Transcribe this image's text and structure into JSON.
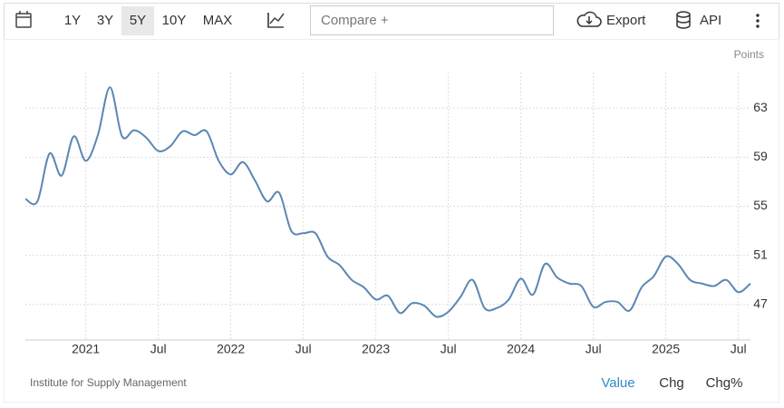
{
  "toolbar": {
    "ranges": [
      "1Y",
      "3Y",
      "5Y",
      "10Y",
      "MAX"
    ],
    "compare": "Compare +",
    "export": "Export",
    "api": "API"
  },
  "footer": {
    "tabs": [
      "Value",
      "Chg",
      "Chg%"
    ]
  },
  "chart_data": {
    "type": "line",
    "y_label": "Points",
    "source": "Institute for Supply Management",
    "x": [
      "2020-08",
      "2020-09",
      "2020-10",
      "2020-11",
      "2020-12",
      "2021-01",
      "2021-02",
      "2021-03",
      "2021-04",
      "2021-05",
      "2021-06",
      "2021-07",
      "2021-08",
      "2021-09",
      "2021-10",
      "2021-11",
      "2021-12",
      "2022-01",
      "2022-02",
      "2022-03",
      "2022-04",
      "2022-05",
      "2022-06",
      "2022-07",
      "2022-08",
      "2022-09",
      "2022-10",
      "2022-11",
      "2022-12",
      "2023-01",
      "2023-02",
      "2023-03",
      "2023-04",
      "2023-05",
      "2023-06",
      "2023-07",
      "2023-08",
      "2023-09",
      "2023-10",
      "2023-11",
      "2023-12",
      "2024-01",
      "2024-02",
      "2024-03",
      "2024-04",
      "2024-05",
      "2024-06",
      "2024-07",
      "2024-08",
      "2024-09",
      "2024-10",
      "2024-11",
      "2024-12",
      "2025-01",
      "2025-02",
      "2025-03",
      "2025-04",
      "2025-05",
      "2025-06",
      "2025-07",
      "2025-08"
    ],
    "series": [
      {
        "color": "#5b87b5",
        "values": [
          55.6,
          55.4,
          59.3,
          57.5,
          60.7,
          58.7,
          60.8,
          64.7,
          60.7,
          61.2,
          60.6,
          59.5,
          59.9,
          61.1,
          60.8,
          61.1,
          58.7,
          57.6,
          58.6,
          57.1,
          55.4,
          56.1,
          53.0,
          52.8,
          52.8,
          50.9,
          50.2,
          49.0,
          48.4,
          47.4,
          47.7,
          46.3,
          47.1,
          46.9,
          46.0,
          46.4,
          47.6,
          49.0,
          46.7,
          46.7,
          47.4,
          49.1,
          47.8,
          50.3,
          49.2,
          48.7,
          48.5,
          46.8,
          47.2,
          47.2,
          46.5,
          48.4,
          49.3,
          50.9,
          50.3,
          49.0,
          48.7,
          48.5,
          49.0,
          48.0,
          48.7
        ]
      }
    ],
    "xlim": [
      "2020-08",
      "2025-08"
    ],
    "xticks": [
      {
        "value": "2021-01",
        "label": "2021"
      },
      {
        "value": "2021-07",
        "label": "Jul"
      },
      {
        "value": "2022-01",
        "label": "2022"
      },
      {
        "value": "2022-07",
        "label": "Jul"
      },
      {
        "value": "2023-01",
        "label": "2023"
      },
      {
        "value": "2023-07",
        "label": "Jul"
      },
      {
        "value": "2024-01",
        "label": "2024"
      },
      {
        "value": "2024-07",
        "label": "Jul"
      },
      {
        "value": "2025-01",
        "label": "2025"
      },
      {
        "value": "2025-07",
        "label": "Jul"
      }
    ],
    "ylim": [
      44.1,
      65.9
    ],
    "yticks": [
      47,
      51,
      55,
      59,
      63
    ],
    "grid": true
  }
}
